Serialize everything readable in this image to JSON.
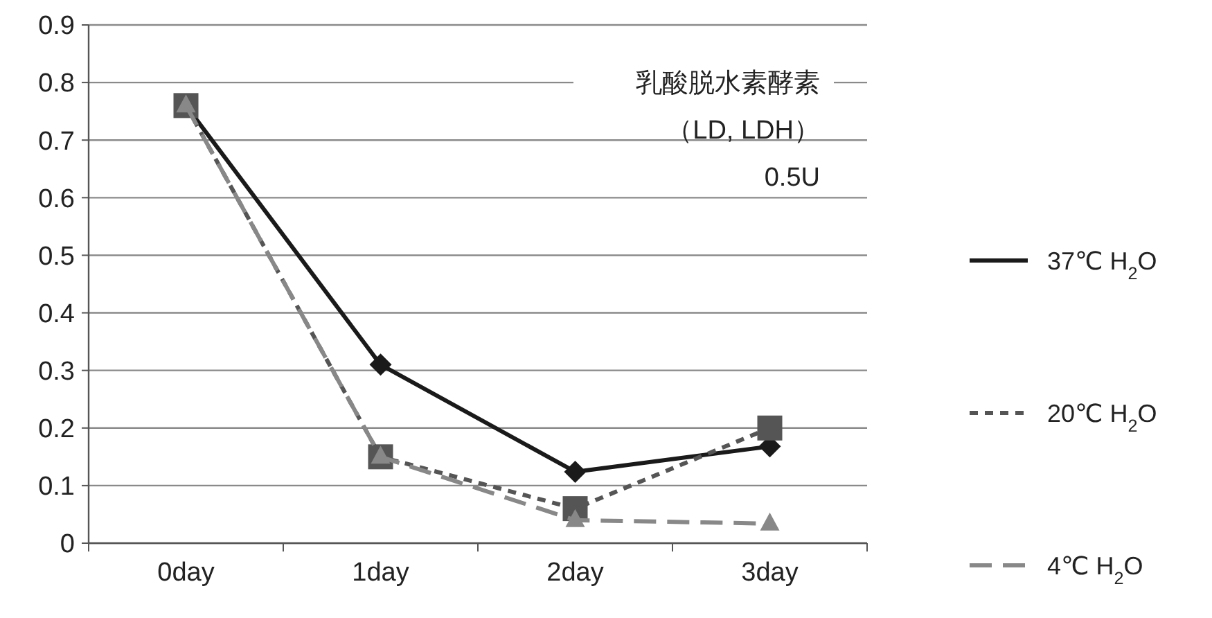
{
  "chart_data": {
    "type": "line",
    "categories": [
      "0day",
      "1day",
      "2day",
      "3day"
    ],
    "ylim": [
      0,
      0.9
    ],
    "yticks": [
      0,
      0.1,
      0.2,
      0.3,
      0.4,
      0.5,
      0.6,
      0.7,
      0.8,
      0.9
    ],
    "grid": "y",
    "legend": "right",
    "annotations": [
      "乳酸脱水素酵素",
      "（LD, LDH）",
      "0.5U"
    ],
    "series": [
      {
        "name": "37℃ H$_{2}$O",
        "color": "#1a1a1a",
        "values": [
          0.76,
          0.31,
          0.124,
          0.168
        ],
        "marker": "diamond",
        "line_style": "solid"
      },
      {
        "name": "20℃ H$_{2}$O",
        "color": "#555555",
        "values": [
          0.76,
          0.15,
          0.06,
          0.2
        ],
        "marker": "square",
        "line_style": "dashed"
      },
      {
        "name": "4℃ H$_{2}$O",
        "color": "#888888",
        "values": [
          0.76,
          0.15,
          0.04,
          0.034
        ],
        "marker": "triangle",
        "line_style": "longdash"
      }
    ]
  }
}
